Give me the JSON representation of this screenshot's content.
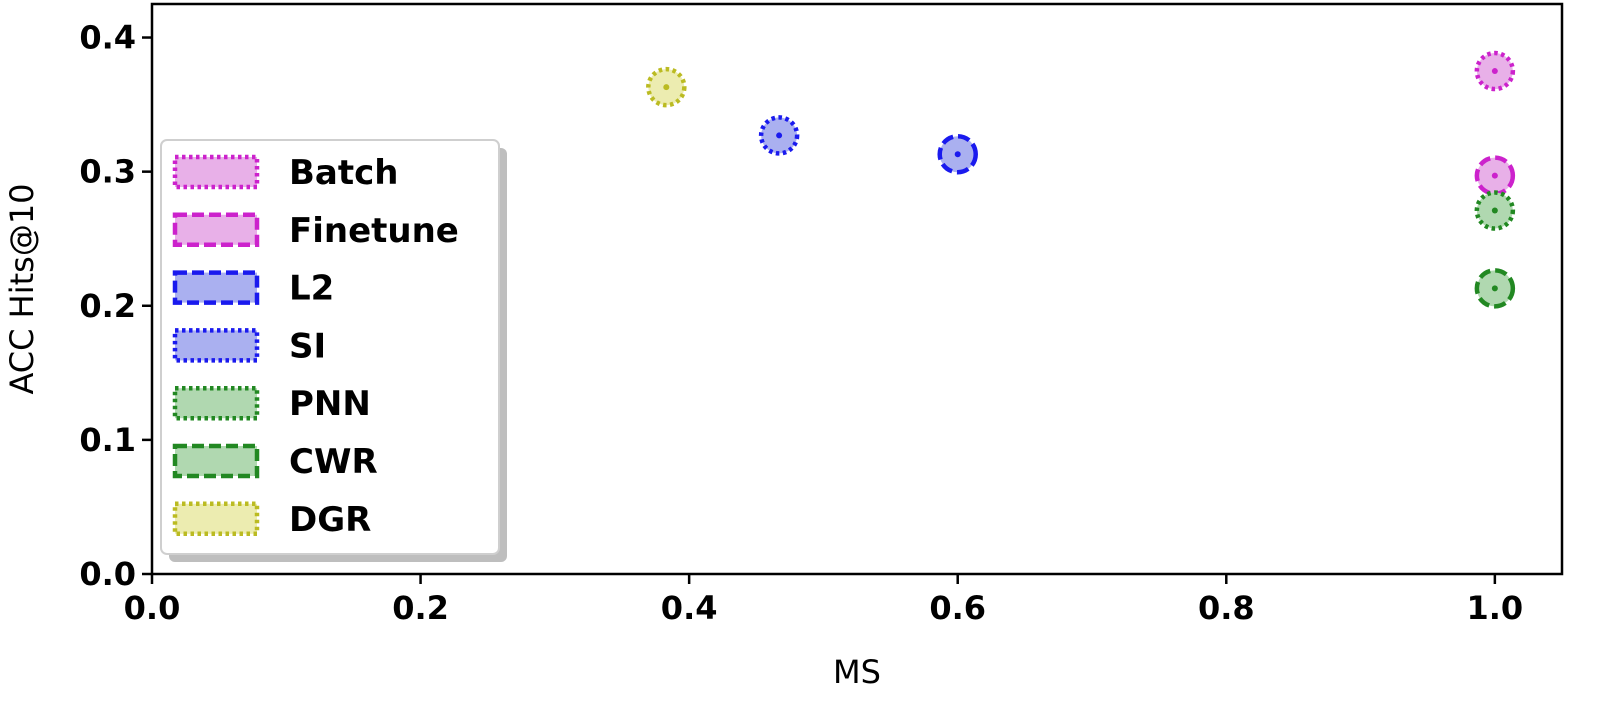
{
  "chart_data": {
    "type": "scatter",
    "title": "",
    "xlabel": "MS",
    "ylabel": "ACC Hits@10",
    "xlim": [
      0.0,
      1.05
    ],
    "ylim": [
      0.0,
      0.425
    ],
    "xticks": [
      0.0,
      0.2,
      0.4,
      0.6,
      0.8,
      1.0
    ],
    "xtick_labels": [
      "0.0",
      "0.2",
      "0.4",
      "0.6",
      "0.8",
      "1.0"
    ],
    "yticks": [
      0.0,
      0.1,
      0.2,
      0.3,
      0.4
    ],
    "ytick_labels": [
      "0.0",
      "0.1",
      "0.2",
      "0.3",
      "0.4"
    ],
    "grid": false,
    "legend_position": "center-left",
    "series": [
      {
        "name": "Batch",
        "x": [
          1.0
        ],
        "y": [
          0.375
        ],
        "color": "#cc22cc",
        "fill": "#e8b0e8",
        "dash": "dotted"
      },
      {
        "name": "Finetune",
        "x": [
          1.0
        ],
        "y": [
          0.297
        ],
        "color": "#cc22cc",
        "fill": "#e8b0e8",
        "dash": "dashed"
      },
      {
        "name": "L2",
        "x": [
          0.6
        ],
        "y": [
          0.313
        ],
        "color": "#1a1aee",
        "fill": "#aab0f0",
        "dash": "dashed"
      },
      {
        "name": "SI",
        "x": [
          0.467
        ],
        "y": [
          0.327
        ],
        "color": "#1a1aee",
        "fill": "#aab0f0",
        "dash": "dotted"
      },
      {
        "name": "PNN",
        "x": [
          1.0
        ],
        "y": [
          0.271
        ],
        "color": "#228822",
        "fill": "#b0d8b0",
        "dash": "dotted"
      },
      {
        "name": "CWR",
        "x": [
          1.0
        ],
        "y": [
          0.213
        ],
        "color": "#228822",
        "fill": "#b0d8b0",
        "dash": "dashed"
      },
      {
        "name": "DGR",
        "x": [
          0.383
        ],
        "y": [
          0.363
        ],
        "color": "#bbbb22",
        "fill": "#ececb0",
        "dash": "dotted"
      }
    ]
  }
}
